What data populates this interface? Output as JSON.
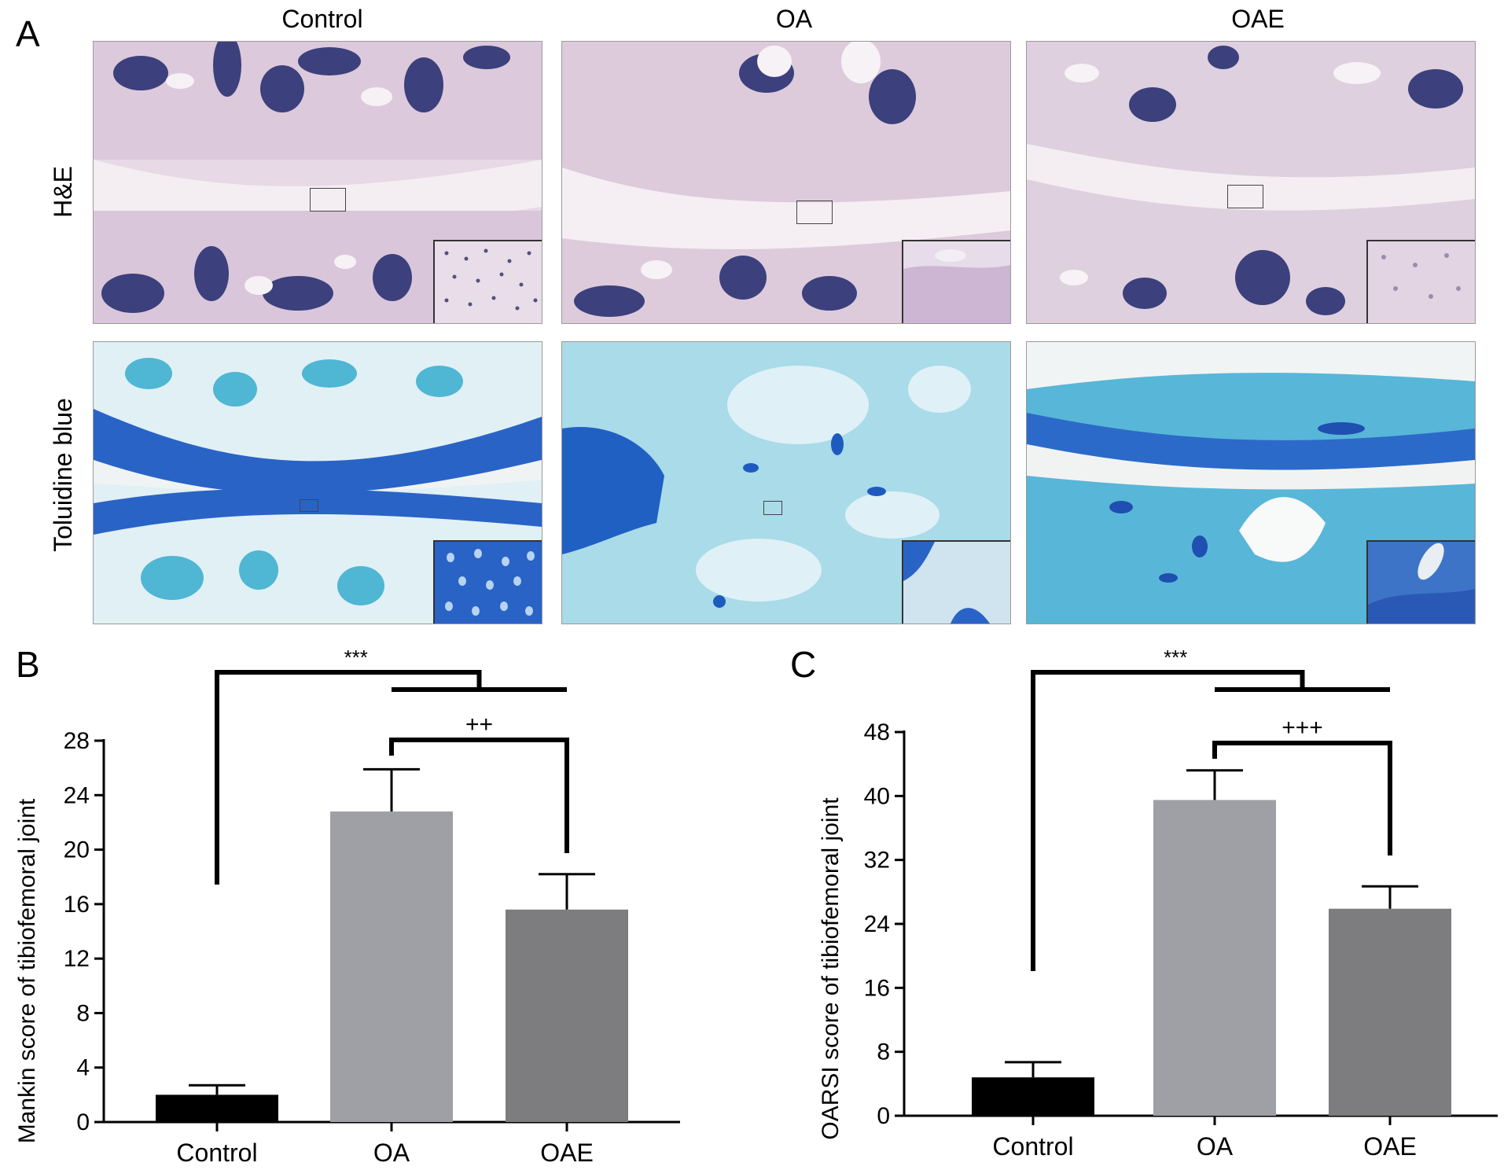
{
  "figure": {
    "panel_letters": {
      "a": "A",
      "b": "B",
      "c": "C"
    },
    "columns": [
      "Control",
      "OA",
      "OAE"
    ],
    "rows": [
      "H&E",
      "Toluidine blue"
    ],
    "colors": {
      "he_background": "#e6d8e6",
      "he_dark": "#3b3f7a",
      "he_cartilage": "#d9c7d9",
      "tb_background": "#dff0f4",
      "tb_dark": "#1e5fc4",
      "tb_light": "#48b4d6",
      "bar_control": "#000000",
      "bar_oa": "#9fa0a5",
      "bar_oae": "#7d7d7f"
    }
  },
  "chart_data": [
    {
      "type": "bar",
      "panel": "B",
      "categories": [
        "Control",
        "OA",
        "OAE"
      ],
      "values": [
        2.0,
        22.8,
        15.6
      ],
      "errors": [
        0.7,
        3.1,
        2.6
      ],
      "ylabel": "Mankin score of tibiofemoral joint",
      "ylim": [
        0,
        28
      ],
      "yticks": [
        0,
        4,
        8,
        12,
        16,
        20,
        24,
        28
      ],
      "significance": [
        {
          "label": "***",
          "from": "Control",
          "to": "OA+OAE"
        },
        {
          "label": "++",
          "from": "OA",
          "to": "OAE"
        }
      ]
    },
    {
      "type": "bar",
      "panel": "C",
      "categories": [
        "Control",
        "OA",
        "OAE"
      ],
      "values": [
        4.8,
        39.5,
        25.9
      ],
      "errors": [
        1.9,
        3.7,
        2.8
      ],
      "ylabel": "OARSI score of tibiofemoral joint",
      "ylim": [
        0,
        48
      ],
      "yticks": [
        0,
        8,
        16,
        24,
        32,
        40,
        48
      ],
      "significance": [
        {
          "label": "***",
          "from": "Control",
          "to": "OA+OAE"
        },
        {
          "label": "+++",
          "from": "OA",
          "to": "OAE"
        }
      ]
    }
  ]
}
